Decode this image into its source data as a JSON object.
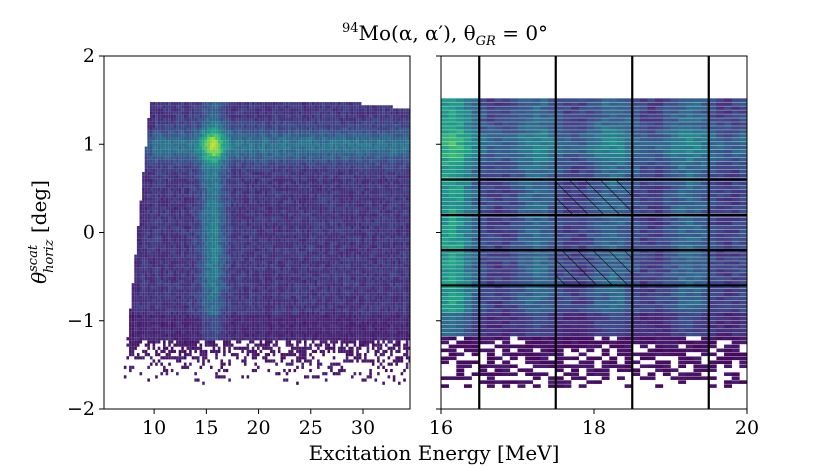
{
  "chart_data": [
    {
      "type": "heatmap",
      "title_parts": {
        "sup": "94",
        "main": "Mo(α, α′), θ",
        "sub": "GR",
        "tail": " = 0°"
      },
      "ylabel_parts": {
        "main": "θ",
        "sup": "scat",
        "sub": "horiz",
        "unit": " [deg]"
      },
      "xlabel": "Excitation Energy [MeV]",
      "xlim": [
        5.2,
        34.5
      ],
      "ylim": [
        -2,
        2
      ],
      "xticks": [
        "10",
        "15",
        "20",
        "25",
        "30"
      ],
      "yticks": [
        "2",
        "1",
        "0",
        "−1",
        "−2"
      ],
      "colormap": "viridis",
      "description_values": {
        "band_y_range": [
          -1.2,
          1.5
        ],
        "sparse_y_range": [
          -1.6,
          -1.2
        ],
        "enhanced_x_range": [
          14.5,
          16.5
        ],
        "enhanced_y_row": 1.0
      }
    },
    {
      "type": "heatmap",
      "xlim": [
        16,
        20
      ],
      "ylim": [
        -2,
        2
      ],
      "xticks": [
        "16",
        "18",
        "20"
      ],
      "vertical_lines_x": [
        16.5,
        17.5,
        18.5,
        19.5
      ],
      "horizontal_lines_y": [
        0.6,
        0.2,
        -0.2,
        -0.6
      ],
      "hatched_boxes": [
        {
          "x": [
            17.5,
            18.5
          ],
          "y": [
            0.2,
            0.6
          ]
        },
        {
          "x": [
            17.5,
            18.5
          ],
          "y": [
            -0.6,
            -0.2
          ]
        }
      ],
      "colormap": "viridis"
    }
  ]
}
